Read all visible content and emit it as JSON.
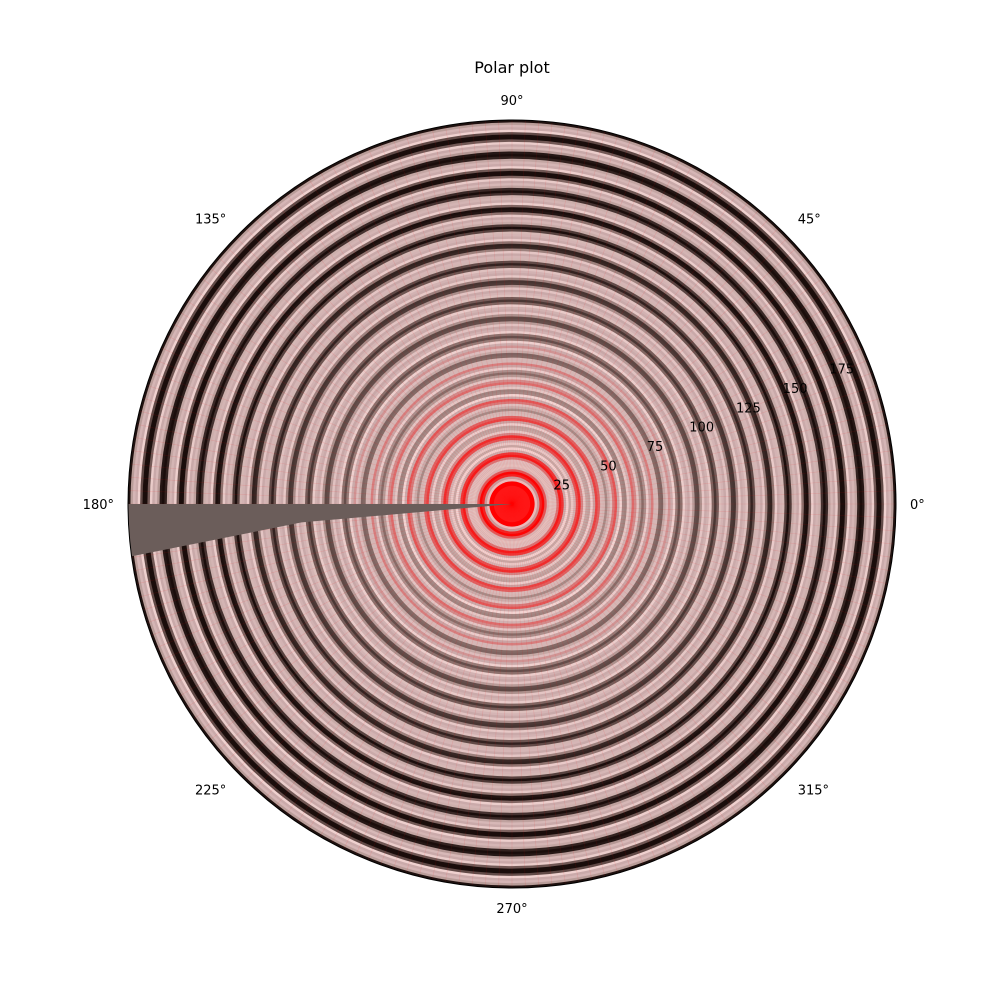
{
  "chart_data": {
    "type": "heatmap",
    "projection": "polar",
    "title": "Polar plot",
    "theta_tick_labels": [
      "0°",
      "45°",
      "90°",
      "135°",
      "180°",
      "225°",
      "270°",
      "315°"
    ],
    "theta_ticks_deg": [
      0,
      45,
      90,
      135,
      180,
      225,
      270,
      315
    ],
    "r_tick_labels": [
      "25",
      "50",
      "75",
      "100",
      "125",
      "150",
      "175"
    ],
    "r_ticks": [
      25,
      50,
      75,
      100,
      125,
      150,
      175
    ],
    "rlim": [
      0,
      190
    ],
    "r_label_position_deg": 22.5,
    "grid": false,
    "colormap": [
      "#ff0000",
      "#c8a8a8",
      "#f2d4d2",
      "#8a6e6a",
      "#1a0d0b"
    ],
    "pattern": "concentric ripples, amplitude increasing with radius; wedge gap near 180°–190°",
    "gap_theta_deg": [
      180,
      190
    ],
    "gap_color": "#6b5d5a",
    "ring_spacing": 9
  }
}
